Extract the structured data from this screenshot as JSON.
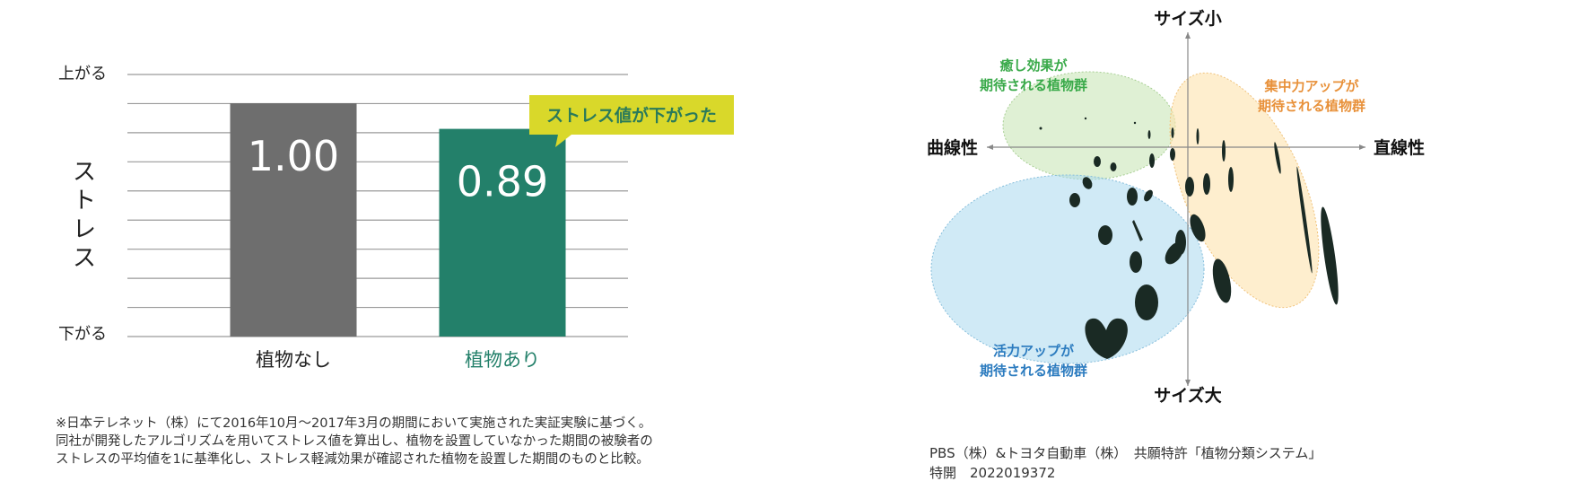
{
  "chart_data": [
    {
      "type": "bar",
      "ylabel": "ストレス",
      "y_top_label": "上がる",
      "y_bottom_label": "下がる",
      "categories": [
        "植物なし",
        "植物あり"
      ],
      "values": [
        1.0,
        0.89
      ],
      "value_labels": [
        "1.00",
        "0.89"
      ],
      "bar_colors": [
        "#6e6e6e",
        "#23806a"
      ],
      "category_colors": [
        "#222222",
        "#23806a"
      ],
      "annotation": "ストレス値が下がった",
      "annotation_color": "#d9d82a",
      "grid": true
    },
    {
      "type": "diagram",
      "axes": {
        "top": "サイズ小",
        "bottom": "サイズ大",
        "left": "曲線性",
        "right": "直線性"
      },
      "groups": [
        {
          "label_lines": [
            "癒し効果が",
            "期待される植物群"
          ],
          "color": "#3aaa4a"
        },
        {
          "label_lines": [
            "集中力アップが",
            "期待される植物群"
          ],
          "color": "#e8913a"
        },
        {
          "label_lines": [
            "活力アップが",
            "期待される植物群"
          ],
          "color": "#2b7bbf"
        }
      ]
    }
  ],
  "footnote": [
    "※日本テレネット（株）にて2016年10月〜2017年3月の期間において実施された実証実験に基づく。",
    "同社が開発したアルゴリズムを用いてストレス値を算出し、植物を設置していなかった期間の被験者の",
    "ストレスの平均値を1に基準化し、ストレス軽減効果が確認された植物を設置した期間のものと比較。"
  ],
  "patent": [
    "PBS（株）&トヨタ自動車（株）　共願特許「植物分類システム」",
    "特開　2022019372"
  ]
}
